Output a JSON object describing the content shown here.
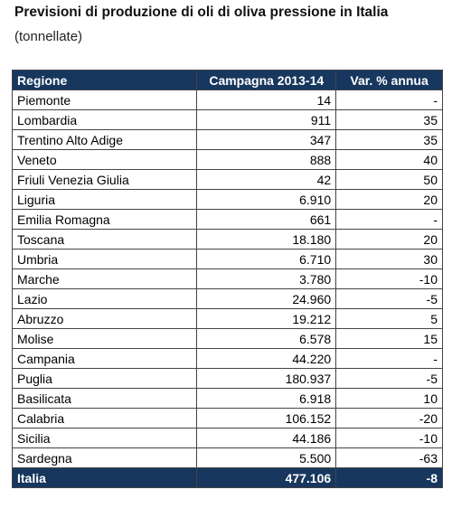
{
  "header": {
    "title": "Previsioni di produzione di oli di oliva pressione in Italia",
    "subtitle": "(tonnellate)"
  },
  "table": {
    "columns": [
      "Regione",
      "Campagna 2013-14",
      "Var. % annua"
    ],
    "rows": [
      [
        "Piemonte",
        "14",
        "-"
      ],
      [
        "Lombardia",
        "911",
        "35"
      ],
      [
        "Trentino Alto Adige",
        "347",
        "35"
      ],
      [
        "Veneto",
        "888",
        "40"
      ],
      [
        "Friuli Venezia Giulia",
        "42",
        "50"
      ],
      [
        "Liguria",
        "6.910",
        "20"
      ],
      [
        "Emilia Romagna",
        "661",
        "-"
      ],
      [
        "Toscana",
        "18.180",
        "20"
      ],
      [
        "Umbria",
        "6.710",
        "30"
      ],
      [
        "Marche",
        "3.780",
        "-10"
      ],
      [
        "Lazio",
        "24.960",
        "-5"
      ],
      [
        "Abruzzo",
        "19.212",
        "5"
      ],
      [
        "Molise",
        "6.578",
        "15"
      ],
      [
        "Campania",
        "44.220",
        "-"
      ],
      [
        "Puglia",
        "180.937",
        "-5"
      ],
      [
        "Basilicata",
        "6.918",
        "10"
      ],
      [
        "Calabria",
        "106.152",
        "-20"
      ],
      [
        "Sicilia",
        "44.186",
        "-10"
      ],
      [
        "Sardegna",
        "5.500",
        "-63"
      ]
    ],
    "total": [
      "Italia",
      "477.106",
      "-8"
    ]
  }
}
